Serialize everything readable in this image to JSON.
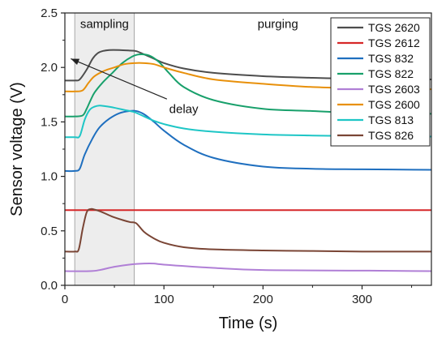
{
  "chart_data": {
    "type": "line",
    "xlabel": "Time (s)",
    "ylabel": "Sensor voltage (V)",
    "xlim": [
      0,
      370
    ],
    "ylim": [
      0.0,
      2.5
    ],
    "xticks": [
      0,
      100,
      200,
      300
    ],
    "yticks": [
      0.0,
      0.5,
      1.0,
      1.5,
      2.0,
      2.5
    ],
    "x_tick_labels": [
      "0",
      "100",
      "200",
      "300"
    ],
    "y_tick_labels": [
      "0.0",
      "0.5",
      "1.0",
      "1.5",
      "2.0",
      "2.5"
    ],
    "grid": false,
    "legend_position": "top-right",
    "shaded_region": {
      "x_start": 10,
      "x_end": 70,
      "color": "#ededed",
      "line_color": "#a8a8a8"
    },
    "annotations": [
      {
        "text": "sampling",
        "x": 40,
        "y": 2.4
      },
      {
        "text": "purging",
        "x": 215,
        "y": 2.4
      },
      {
        "text": "delay",
        "x": 120,
        "y": 1.62
      }
    ],
    "arrow": {
      "from": [
        103,
        1.71
      ],
      "to": [
        6,
        2.08
      ],
      "color": "#222222"
    },
    "series": [
      {
        "name": "TGS 2620",
        "color": "#4d4d4d",
        "x": [
          0,
          10,
          15,
          22,
          28,
          33,
          38,
          45,
          55,
          65,
          72,
          80,
          90,
          100,
          120,
          150,
          200,
          250,
          300,
          370
        ],
        "values": [
          1.88,
          1.88,
          1.89,
          1.98,
          2.08,
          2.13,
          2.15,
          2.16,
          2.16,
          2.155,
          2.15,
          2.12,
          2.08,
          2.04,
          1.99,
          1.95,
          1.92,
          1.905,
          1.895,
          1.89
        ]
      },
      {
        "name": "TGS 2612",
        "color": "#d62728",
        "x": [
          0,
          20,
          40,
          100,
          200,
          300,
          370
        ],
        "values": [
          0.69,
          0.69,
          0.69,
          0.69,
          0.69,
          0.69,
          0.69
        ]
      },
      {
        "name": "TGS 832",
        "color": "#1f6fbf",
        "x": [
          0,
          10,
          15,
          20,
          28,
          35,
          45,
          55,
          65,
          72,
          80,
          90,
          100,
          120,
          150,
          200,
          250,
          300,
          370
        ],
        "values": [
          1.05,
          1.05,
          1.07,
          1.2,
          1.35,
          1.45,
          1.53,
          1.58,
          1.6,
          1.6,
          1.57,
          1.5,
          1.42,
          1.29,
          1.17,
          1.09,
          1.07,
          1.065,
          1.06
        ]
      },
      {
        "name": "TGS 822",
        "color": "#18a06b",
        "x": [
          0,
          10,
          18,
          22,
          26,
          30,
          38,
          48,
          58,
          68,
          75,
          85,
          95,
          105,
          120,
          150,
          200,
          250,
          300,
          370
        ],
        "values": [
          1.55,
          1.55,
          1.56,
          1.62,
          1.7,
          1.77,
          1.86,
          1.95,
          2.04,
          2.1,
          2.12,
          2.11,
          2.05,
          1.95,
          1.82,
          1.7,
          1.62,
          1.6,
          1.58,
          1.575
        ]
      },
      {
        "name": "TGS 2603",
        "color": "#b07fd6",
        "x": [
          0,
          25,
          35,
          50,
          65,
          80,
          90,
          100,
          150,
          200,
          300,
          370
        ],
        "values": [
          0.13,
          0.13,
          0.14,
          0.17,
          0.19,
          0.2,
          0.2,
          0.19,
          0.16,
          0.14,
          0.135,
          0.13
        ]
      },
      {
        "name": "TGS 2600",
        "color": "#e8900a",
        "x": [
          0,
          10,
          18,
          24,
          30,
          40,
          50,
          60,
          70,
          80,
          90,
          100,
          120,
          150,
          200,
          250,
          300,
          370
        ],
        "values": [
          1.78,
          1.78,
          1.79,
          1.86,
          1.92,
          1.97,
          2.0,
          2.03,
          2.04,
          2.04,
          2.03,
          2.0,
          1.95,
          1.89,
          1.85,
          1.82,
          1.81,
          1.8
        ]
      },
      {
        "name": "TGS 813",
        "color": "#1ec6c6",
        "x": [
          0,
          10,
          15,
          20,
          25,
          30,
          35,
          40,
          50,
          60,
          70,
          80,
          90,
          100,
          120,
          150,
          200,
          250,
          300,
          370
        ],
        "values": [
          1.36,
          1.36,
          1.37,
          1.52,
          1.61,
          1.64,
          1.65,
          1.645,
          1.63,
          1.61,
          1.59,
          1.55,
          1.51,
          1.48,
          1.44,
          1.41,
          1.385,
          1.375,
          1.37,
          1.365
        ]
      },
      {
        "name": "TGS 826",
        "color": "#7a4535",
        "x": [
          0,
          10,
          14,
          18,
          22,
          26,
          30,
          38,
          48,
          58,
          66,
          72,
          80,
          90,
          100,
          120,
          150,
          200,
          250,
          300,
          370
        ],
        "values": [
          0.31,
          0.31,
          0.33,
          0.52,
          0.67,
          0.7,
          0.695,
          0.67,
          0.63,
          0.6,
          0.58,
          0.57,
          0.49,
          0.43,
          0.39,
          0.35,
          0.33,
          0.32,
          0.315,
          0.31,
          0.31
        ]
      }
    ]
  }
}
